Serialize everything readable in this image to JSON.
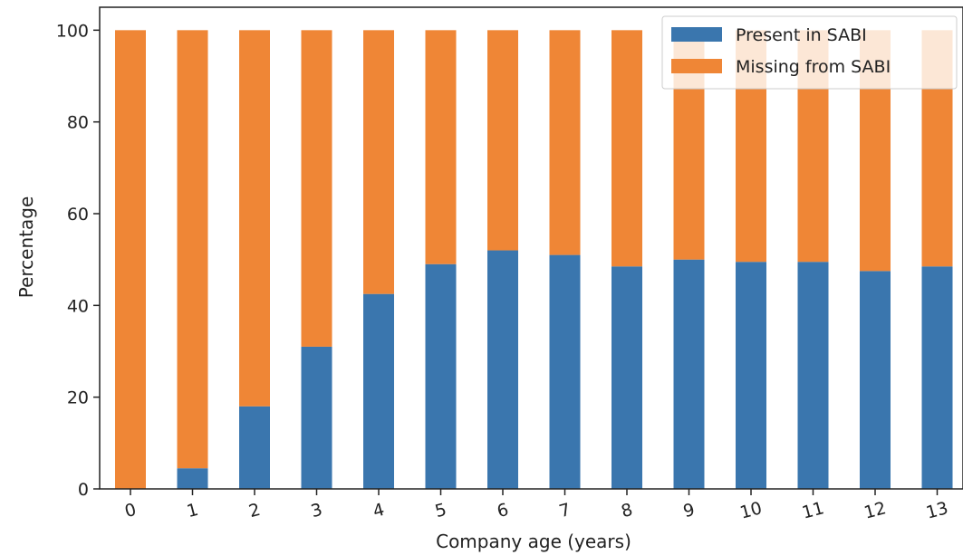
{
  "chart_data": {
    "type": "bar",
    "stacked": true,
    "title": "",
    "xlabel": "Company age (years)",
    "ylabel": "Percentage",
    "categories": [
      "0",
      "1",
      "2",
      "3",
      "4",
      "5",
      "6",
      "7",
      "8",
      "9",
      "10",
      "11",
      "12",
      "13"
    ],
    "ylim": [
      0,
      105
    ],
    "yticks": [
      0,
      20,
      40,
      60,
      80,
      100
    ],
    "grid": false,
    "legend_position": "top-right",
    "series": [
      {
        "name": "Present in SABI",
        "color": "#3a76ae",
        "values": [
          0,
          4.5,
          18,
          31,
          42.5,
          49,
          52,
          51,
          48.5,
          50,
          49.5,
          49.5,
          47.5,
          48.5
        ]
      },
      {
        "name": "Missing from SABI",
        "color": "#ef8636",
        "values": [
          100,
          95.5,
          82,
          69,
          57.5,
          51,
          48,
          49,
          51.5,
          50,
          50.5,
          50.5,
          52.5,
          51.5
        ]
      }
    ]
  }
}
